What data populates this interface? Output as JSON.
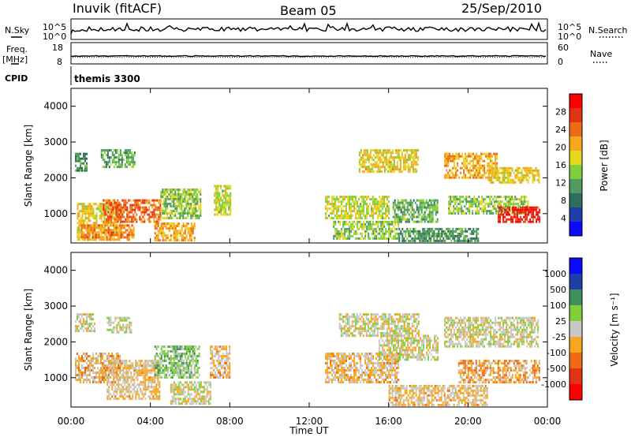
{
  "header": {
    "station": "Inuvik (fitACF)",
    "beam": "Beam 05",
    "date": "25/Sep/2010"
  },
  "strips": {
    "nsky": {
      "left_label": "N.Sky",
      "right_label": "N.Search",
      "ticks_left": [
        "10^5",
        "10^0"
      ],
      "ticks_right": [
        "10^5",
        "10^0"
      ]
    },
    "freq": {
      "left_label": "Freq.",
      "left_unit": "[MHz]",
      "right_label": "Nave",
      "ticks_left": [
        "18",
        "8"
      ],
      "ticks_right": [
        "60",
        "0"
      ]
    },
    "cpid": {
      "label": "CPID",
      "value": "themis 3300"
    }
  },
  "colors": {
    "power_scale": [
      "#0a0aff",
      "#1f3fa8",
      "#2e6e5a",
      "#4f9a60",
      "#7fcf3a",
      "#e6d61e",
      "#f7a71e",
      "#f06a14",
      "#e23414",
      "#ff0000"
    ],
    "velocity_scale": [
      "#ff0000",
      "#e23414",
      "#f06a14",
      "#f7a71e",
      "#c8c8c8",
      "#7fcf3a",
      "#3f8f5f",
      "#1f3fa8",
      "#0a0aff"
    ]
  },
  "chart_data": [
    {
      "type": "heatmap",
      "title": "",
      "xlabel": "",
      "ylabel": "Slant Range [km]",
      "x_ticks": [
        "00:00",
        "04:00",
        "08:00",
        "12:00",
        "16:00",
        "20:00",
        "00:00"
      ],
      "xlim": [
        0,
        24
      ],
      "y_ticks": [
        "1000",
        "2000",
        "3000",
        "4000"
      ],
      "ylim": [
        180,
        4500
      ],
      "colorbar": {
        "label": "Power [dB]",
        "ticks": [
          "4",
          "8",
          "12",
          "16",
          "20",
          "24",
          "28"
        ],
        "range": [
          0,
          31
        ]
      },
      "regions": [
        {
          "x": [
            0.3,
            2.5
          ],
          "y": [
            300,
            1300
          ],
          "value": 18
        },
        {
          "x": [
            1.6,
            4.5
          ],
          "y": [
            800,
            1400
          ],
          "value": 24
        },
        {
          "x": [
            0.5,
            3.2
          ],
          "y": [
            300,
            700
          ],
          "value": 22
        },
        {
          "x": [
            4.2,
            6.2
          ],
          "y": [
            250,
            750
          ],
          "value": 20
        },
        {
          "x": [
            4.5,
            6.5
          ],
          "y": [
            900,
            1700
          ],
          "value": 14
        },
        {
          "x": [
            7.2,
            8.0
          ],
          "y": [
            1000,
            1800
          ],
          "value": 16
        },
        {
          "x": [
            1.5,
            3.2
          ],
          "y": [
            2300,
            2800
          ],
          "value": 12
        },
        {
          "x": [
            0.2,
            0.8
          ],
          "y": [
            2200,
            2700
          ],
          "value": 10
        },
        {
          "x": [
            12.8,
            16.0
          ],
          "y": [
            900,
            1500
          ],
          "value": 16
        },
        {
          "x": [
            13.2,
            16.5
          ],
          "y": [
            300,
            800
          ],
          "value": 14
        },
        {
          "x": [
            14.5,
            17.5
          ],
          "y": [
            2200,
            2800
          ],
          "value": 18
        },
        {
          "x": [
            16.2,
            18.5
          ],
          "y": [
            800,
            1400
          ],
          "value": 12
        },
        {
          "x": [
            18.8,
            21.5
          ],
          "y": [
            2000,
            2700
          ],
          "value": 20
        },
        {
          "x": [
            19.0,
            23.0
          ],
          "y": [
            1000,
            1500
          ],
          "value": 14
        },
        {
          "x": [
            21.5,
            23.6
          ],
          "y": [
            800,
            1200
          ],
          "value": 28
        },
        {
          "x": [
            21.0,
            23.6
          ],
          "y": [
            1900,
            2300
          ],
          "value": 18
        },
        {
          "x": [
            16.5,
            20.5
          ],
          "y": [
            250,
            600
          ],
          "value": 10
        }
      ]
    },
    {
      "type": "heatmap",
      "title": "",
      "xlabel": "Time UT",
      "ylabel": "Slant Range [km]",
      "x_ticks": [
        "00:00",
        "04:00",
        "08:00",
        "12:00",
        "16:00",
        "20:00",
        "00:00"
      ],
      "xlim": [
        0,
        24
      ],
      "y_ticks": [
        "1000",
        "2000",
        "3000",
        "4000"
      ],
      "ylim": [
        180,
        4500
      ],
      "colorbar": {
        "label": "Velocity [m s⁻¹]",
        "ticks": [
          "-1000",
          "-500",
          "-100",
          "-25",
          "25",
          "100",
          "500",
          "1000"
        ],
        "range": [
          -1300,
          1300
        ]
      },
      "regions": [
        {
          "x": [
            0.2,
            2.5
          ],
          "y": [
            900,
            1700
          ],
          "value": -200
        },
        {
          "x": [
            1.8,
            4.5
          ],
          "y": [
            400,
            1500
          ],
          "value": -150
        },
        {
          "x": [
            4.2,
            6.5
          ],
          "y": [
            1000,
            1900
          ],
          "value": 300
        },
        {
          "x": [
            5.0,
            7.0
          ],
          "y": [
            250,
            900
          ],
          "value": 0
        },
        {
          "x": [
            0.2,
            1.2
          ],
          "y": [
            2300,
            2800
          ],
          "value": 0
        },
        {
          "x": [
            1.8,
            3.0
          ],
          "y": [
            2300,
            2700
          ],
          "value": 60
        },
        {
          "x": [
            7.0,
            8.0
          ],
          "y": [
            1000,
            1900
          ],
          "value": -200
        },
        {
          "x": [
            12.8,
            16.5
          ],
          "y": [
            900,
            1700
          ],
          "value": -200
        },
        {
          "x": [
            13.5,
            17.5
          ],
          "y": [
            2200,
            2800
          ],
          "value": 0
        },
        {
          "x": [
            15.5,
            18.5
          ],
          "y": [
            1500,
            2200
          ],
          "value": 0
        },
        {
          "x": [
            18.8,
            23.5
          ],
          "y": [
            1900,
            2700
          ],
          "value": 0
        },
        {
          "x": [
            19.5,
            23.6
          ],
          "y": [
            900,
            1500
          ],
          "value": -300
        },
        {
          "x": [
            16.0,
            21.0
          ],
          "y": [
            250,
            800
          ],
          "value": -150
        }
      ]
    }
  ]
}
